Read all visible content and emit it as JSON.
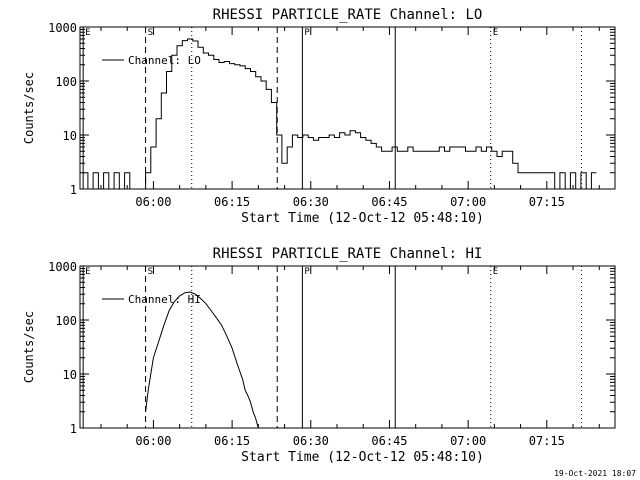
{
  "chart_data": [
    {
      "type": "line",
      "title": "RHESSI PARTICLE_RATE Channel: LO",
      "xlabel": "Start Time (12-Oct-12 05:48:10)",
      "ylabel": "Counts/sec",
      "y_scale": "log",
      "ylim": [
        1,
        1000
      ],
      "x_unit": "minutes of day",
      "xlim": [
        346,
        448
      ],
      "x_tick_labels": [
        "06:00",
        "06:15",
        "06:30",
        "06:45",
        "07:00",
        "07:15"
      ],
      "x_tick_minutes": [
        360,
        375,
        390,
        405,
        420,
        435
      ],
      "y_tick_labels": [
        "1",
        "10",
        "100",
        "1000"
      ],
      "y_tick_values": [
        1,
        10,
        100,
        1000
      ],
      "legend": {
        "entry": "Channel: LO",
        "placement": "top-left"
      },
      "markers": [
        {
          "label": "E",
          "minute": 346.6,
          "style": "solid"
        },
        {
          "label": "S",
          "minute": 358.5,
          "style": "dashed"
        },
        {
          "label": "",
          "minute": 367.3,
          "style": "dotted"
        },
        {
          "label": "",
          "minute": 383.6,
          "style": "dashed"
        },
        {
          "label": "P",
          "minute": 388.4,
          "style": "solid"
        },
        {
          "label": "",
          "minute": 406.1,
          "style": "solid"
        },
        {
          "label": "E",
          "minute": 424.3,
          "style": "dotted"
        },
        {
          "label": "",
          "minute": 441.6,
          "style": "dotted"
        }
      ],
      "series": [
        {
          "x": [
            346.5,
            347.5,
            348.5,
            349.5,
            350.5,
            351.5,
            352.5,
            353.5,
            354.5,
            355.5,
            356.5,
            357.5,
            358.5,
            359.5,
            360.5,
            361.5,
            362.5,
            363.5,
            364.5,
            365.5,
            366.5,
            367.5,
            368.5,
            369.5,
            370.5,
            371.5,
            372.5,
            373.5,
            374.5,
            375.5,
            376.5,
            377.5,
            378.5,
            379.5,
            380.5,
            381.5,
            382.5,
            383.5,
            384.5,
            385.5,
            386.5,
            387.5,
            388.5,
            389.5,
            390.5,
            391.5,
            392.5,
            393.5,
            394.5,
            395.5,
            396.5,
            397.5,
            398.5,
            399.5,
            400.5,
            401.5,
            402.5,
            403.5,
            404.5,
            405.5,
            406.5,
            407.5,
            408.5,
            409.5,
            410.5,
            411.5,
            412.5,
            413.5,
            414.5,
            415.5,
            416.5,
            417.5,
            418.5,
            419.5,
            420.5,
            421.5,
            422.5,
            423.5,
            424.5,
            425.5,
            426.5,
            427.5,
            428.5,
            429.5,
            430.5,
            431.5,
            432.5,
            433.5,
            434.5,
            435.5,
            436.5,
            437.5,
            438.5,
            439.5,
            440.5,
            441.5,
            442.5,
            443.5
          ],
          "values": [
            2,
            1,
            2,
            1,
            2,
            1,
            2,
            1,
            2,
            1,
            1,
            1,
            2,
            6,
            20,
            60,
            150,
            300,
            450,
            560,
            600,
            550,
            420,
            330,
            300,
            250,
            220,
            230,
            210,
            200,
            190,
            170,
            150,
            120,
            100,
            70,
            40,
            10,
            3,
            6,
            10,
            9,
            10,
            9,
            8,
            9,
            9,
            10,
            9,
            11,
            10,
            12,
            11,
            9,
            8,
            7,
            6,
            5,
            5,
            6,
            5,
            5,
            6,
            5,
            5,
            5,
            5,
            5,
            6,
            5,
            6,
            6,
            6,
            5,
            5,
            6,
            5,
            6,
            5,
            4,
            5,
            5,
            3,
            2,
            2,
            2,
            2,
            2,
            2,
            2,
            1,
            2,
            1,
            2,
            1,
            2,
            1,
            2
          ]
        }
      ]
    },
    {
      "type": "line",
      "title": "RHESSI PARTICLE_RATE Channel: HI",
      "xlabel": "Start Time (12-Oct-12 05:48:10)",
      "ylabel": "Counts/sec",
      "y_scale": "log",
      "ylim": [
        1,
        1000
      ],
      "x_unit": "minutes of day",
      "xlim": [
        346,
        448
      ],
      "x_tick_labels": [
        "06:00",
        "06:15",
        "06:30",
        "06:45",
        "07:00",
        "07:15"
      ],
      "x_tick_minutes": [
        360,
        375,
        390,
        405,
        420,
        435
      ],
      "y_tick_labels": [
        "1",
        "10",
        "100",
        "1000"
      ],
      "y_tick_values": [
        1,
        10,
        100,
        1000
      ],
      "legend": {
        "entry": "Channel: HI",
        "placement": "top-left"
      },
      "markers": [
        {
          "label": "E",
          "minute": 346.6,
          "style": "solid"
        },
        {
          "label": "S",
          "minute": 358.5,
          "style": "dashed"
        },
        {
          "label": "",
          "minute": 367.3,
          "style": "dotted"
        },
        {
          "label": "",
          "minute": 383.6,
          "style": "dashed"
        },
        {
          "label": "P",
          "minute": 388.4,
          "style": "solid"
        },
        {
          "label": "",
          "minute": 406.1,
          "style": "solid"
        },
        {
          "label": "E",
          "minute": 424.3,
          "style": "dotted"
        },
        {
          "label": "",
          "minute": 441.6,
          "style": "dotted"
        }
      ],
      "series": [
        {
          "x": [
            358.5,
            359.0,
            359.5,
            360.0,
            361.0,
            362.0,
            363.0,
            364.0,
            365.0,
            366.0,
            367.0,
            368.0,
            369.0,
            370.0,
            371.0,
            372.0,
            373.0,
            374.0,
            375.0,
            376.0,
            377.0,
            377.5,
            378.0,
            378.5,
            379.0,
            379.5,
            380.0
          ],
          "values": [
            2,
            5,
            10,
            20,
            40,
            80,
            150,
            220,
            280,
            320,
            330,
            300,
            250,
            200,
            150,
            110,
            80,
            50,
            30,
            15,
            8,
            5,
            4,
            3,
            2,
            1.5,
            1
          ]
        }
      ]
    }
  ],
  "footer": {
    "date": "19-Oct-2021 18:07"
  }
}
